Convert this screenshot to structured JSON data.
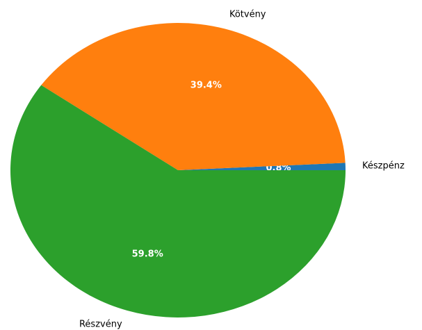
{
  "chart_data": {
    "type": "pie",
    "title": "",
    "slices": [
      {
        "label": "Készpénz",
        "value": 0.8,
        "pct_text": "0.8%",
        "color": "#1f77b4"
      },
      {
        "label": "Kötvény",
        "value": 39.4,
        "pct_text": "39.4%",
        "color": "#ff7f0e"
      },
      {
        "label": "Részvény",
        "value": 59.8,
        "pct_text": "59.8%",
        "color": "#2ca02c"
      }
    ],
    "start_angle_deg": 0,
    "direction": "counterclockwise",
    "legend": "none"
  }
}
